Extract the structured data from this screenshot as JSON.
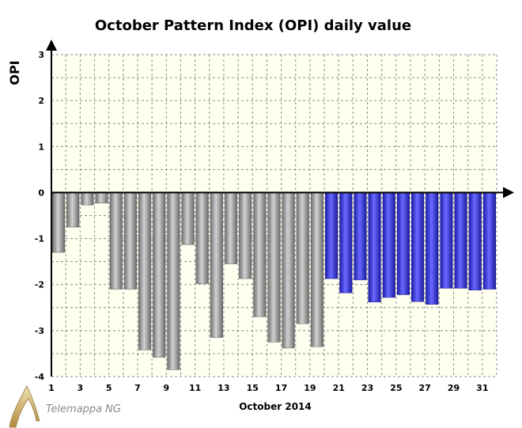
{
  "chart_data": {
    "type": "bar",
    "title": "October Pattern Index (OPI) daily value",
    "ylabel": "OPI",
    "xlabel": "October 2014",
    "ylim": [
      -4,
      3
    ],
    "yticks": [
      -4,
      -3,
      -2,
      -1,
      0,
      1,
      2,
      3
    ],
    "xtick_labels": [
      "1",
      "3",
      "5",
      "7",
      "9",
      "11",
      "13",
      "15",
      "17",
      "19",
      "21",
      "23",
      "25",
      "27",
      "29",
      "31"
    ],
    "grid": true,
    "categories": [
      1,
      2,
      3,
      4,
      5,
      6,
      7,
      8,
      9,
      10,
      11,
      12,
      13,
      14,
      15,
      16,
      17,
      18,
      19,
      20,
      21,
      22,
      23,
      24,
      25,
      26,
      27,
      28,
      29,
      30,
      31
    ],
    "values": [
      -1.3,
      -0.75,
      -0.27,
      -0.23,
      -2.1,
      -2.1,
      -3.42,
      -3.58,
      -3.85,
      -1.13,
      -1.98,
      -3.15,
      -1.55,
      -1.87,
      -2.7,
      -3.25,
      -3.38,
      -2.85,
      -3.35,
      -1.87,
      -2.18,
      -1.9,
      -2.38,
      -2.28,
      -2.22,
      -2.37,
      -2.43,
      -2.08,
      -2.08,
      -2.12,
      -2.1
    ],
    "colors": {
      "observed": "#8c8c8c",
      "forecast": "#3a3ad8",
      "plot_bg": "#fffff0",
      "grid": "#8c8c8c"
    },
    "forecast_from_day": 20
  },
  "logo": {
    "text": "Telemappa NG"
  }
}
